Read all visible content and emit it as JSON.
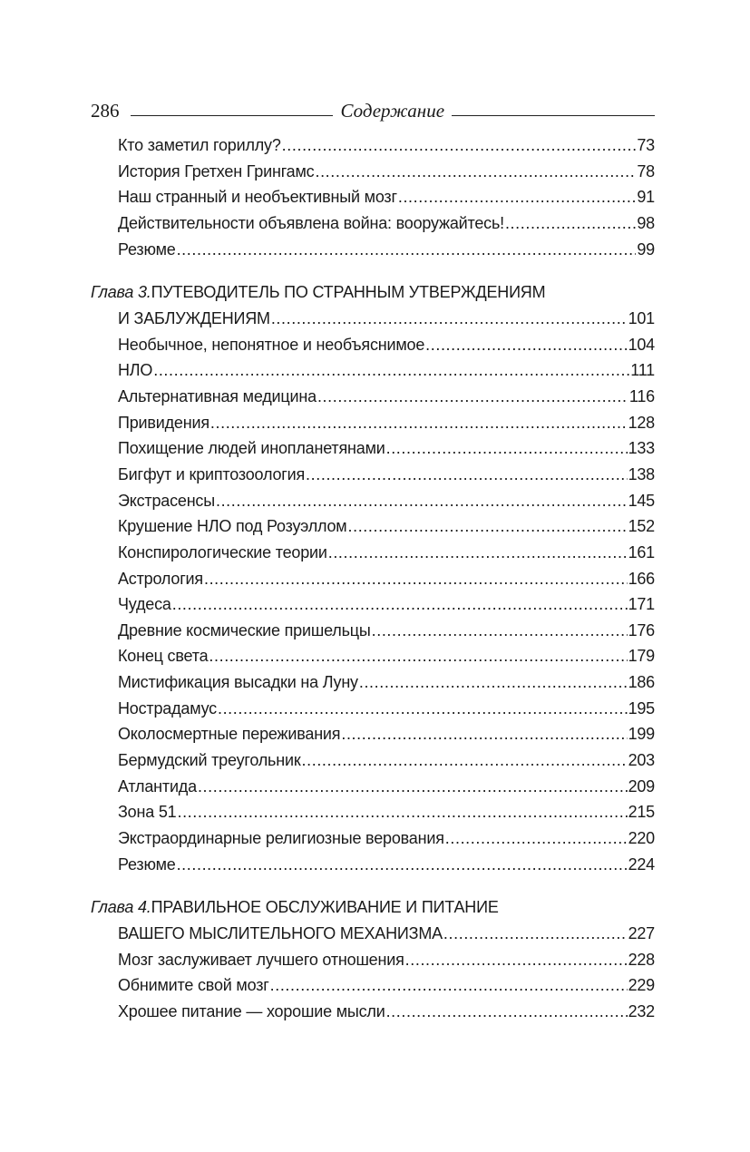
{
  "header": {
    "page_number": "286",
    "title": "Содержание"
  },
  "section_top": {
    "entries": [
      {
        "title": "Кто заметил гориллу?",
        "page": "73"
      },
      {
        "title": "История Гретхен Грингамс",
        "page": "78"
      },
      {
        "title": "Наш странный и необъективный мозг",
        "page": "91"
      },
      {
        "title": "Действительности объявлена война: вооружайтесь!",
        "page": "98"
      },
      {
        "title": "Резюме",
        "page": "99"
      }
    ]
  },
  "chapter3": {
    "label": "Глава 3.",
    "title_line1": "ПУТЕВОДИТЕЛЬ ПО СТРАННЫМ УТВЕРЖДЕНИЯМ",
    "title_line2": "И ЗАБЛУЖДЕНИЯМ",
    "page": "101",
    "entries": [
      {
        "title": "Необычное, непонятное и необъяснимое",
        "page": "104"
      },
      {
        "title": "НЛО",
        "page": "111"
      },
      {
        "title": "Альтернативная медицина",
        "page": "116"
      },
      {
        "title": "Привидения",
        "page": "128"
      },
      {
        "title": "Похищение людей инопланетянами",
        "page": "133"
      },
      {
        "title": "Бигфут и криптозоология",
        "page": "138"
      },
      {
        "title": "Экстрасенсы",
        "page": "145"
      },
      {
        "title": "Крушение НЛО под Розуэллом",
        "page": "152"
      },
      {
        "title": "Конспирологические теории",
        "page": "161"
      },
      {
        "title": "Астрология",
        "page": "166"
      },
      {
        "title": "Чудеса",
        "page": "171"
      },
      {
        "title": "Древние космические пришельцы",
        "page": "176"
      },
      {
        "title": "Конец света",
        "page": "179"
      },
      {
        "title": "Мистификация высадки на Луну",
        "page": "186"
      },
      {
        "title": "Нострадамус",
        "page": "195"
      },
      {
        "title": "Околосмертные переживания",
        "page": "199"
      },
      {
        "title": "Бермудский треугольник",
        "page": "203"
      },
      {
        "title": "Атлантида",
        "page": "209"
      },
      {
        "title": "Зона 51",
        "page": "215"
      },
      {
        "title": "Экстраординарные религиозные верования",
        "page": "220"
      },
      {
        "title": "Резюме",
        "page": "224"
      }
    ]
  },
  "chapter4": {
    "label": "Глава 4.",
    "title_line1": "ПРАВИЛЬНОЕ ОБСЛУЖИВАНИЕ И ПИТАНИЕ",
    "title_line2": "ВАШЕГО МЫСЛИТЕЛЬНОГО МЕХАНИЗМА",
    "page": "227",
    "entries": [
      {
        "title": "Мозг заслуживает лучшего отношения",
        "page": "228"
      },
      {
        "title": "Обнимите свой мозг",
        "page": "229"
      },
      {
        "title": "Хрошее питание — хорошие мысли",
        "page": "232"
      }
    ]
  }
}
